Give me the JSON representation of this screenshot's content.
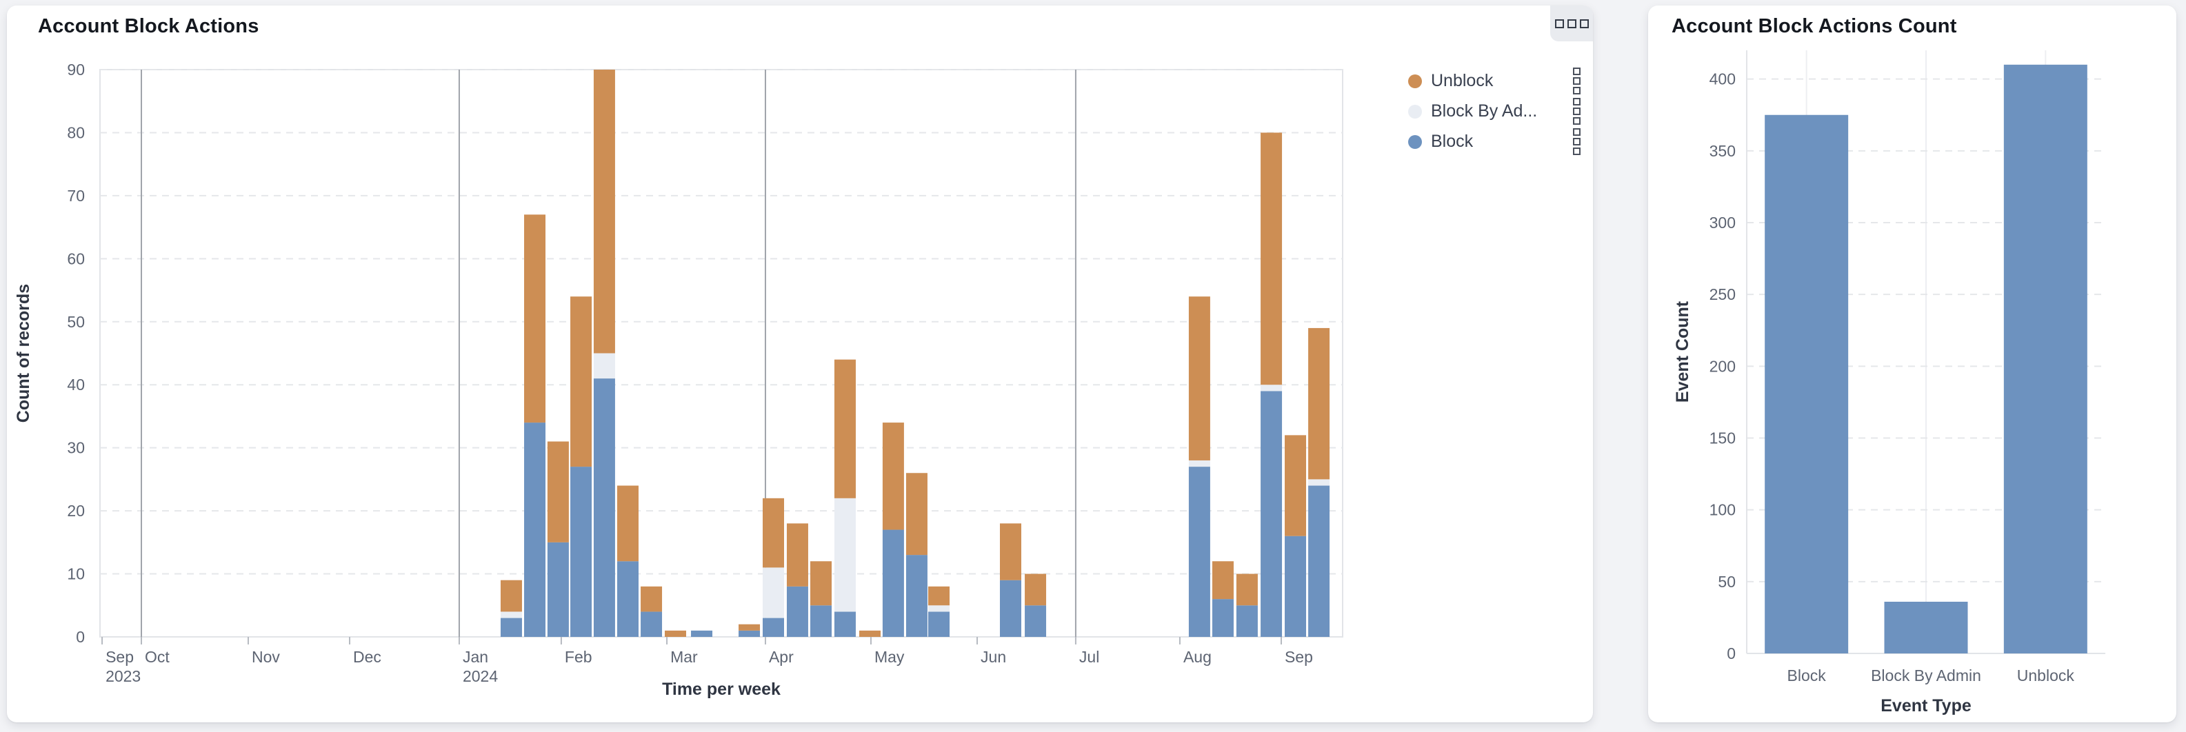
{
  "left_panel": {
    "title": "Account Block Actions",
    "menu_icon": "ellipsis-squares-icon"
  },
  "right_panel": {
    "title": "Account Block Actions Count"
  },
  "colors": {
    "block": "#6d92bf",
    "block_by_admin": "#e9edf3",
    "unblock": "#cd8e54",
    "gridline": "#e5e7ea",
    "quarter_line": "#a0a4ab",
    "plot_border": "#e2e4e8",
    "tick_text": "#5d6472",
    "axis_title_text": "#2f3542"
  },
  "chart_data": [
    {
      "type": "bar",
      "subtype": "stacked-weekly-time-series",
      "title": "Account Block Actions",
      "xlabel": "Time per week",
      "ylabel": "Count of records",
      "ylim": [
        0,
        90
      ],
      "yticks": [
        0,
        10,
        20,
        30,
        40,
        50,
        60,
        70,
        80,
        90
      ],
      "grid": "horizontal-dashed",
      "legend_position": "right",
      "legend": [
        {
          "label": "Unblock",
          "series": "unblock",
          "color": "#cd8e54"
        },
        {
          "label": "Block By Ad...",
          "series": "block_by_admin",
          "color": "#e9edf3"
        },
        {
          "label": "Block",
          "series": "block",
          "color": "#6d92bf"
        }
      ],
      "stack_order_bottom_to_top": [
        "block",
        "block_by_admin",
        "unblock"
      ],
      "x_ticks": [
        {
          "label": "Sep",
          "sublabel": "2023",
          "f": 0.0017
        },
        {
          "label": "Oct",
          "f": 0.0333
        },
        {
          "label": "Nov",
          "f": 0.1193
        },
        {
          "label": "Dec",
          "f": 0.2009
        },
        {
          "label": "Jan",
          "sublabel": "2024",
          "f": 0.2891
        },
        {
          "label": "Feb",
          "f": 0.3712
        },
        {
          "label": "Mar",
          "f": 0.4562
        },
        {
          "label": "Apr",
          "f": 0.5355
        },
        {
          "label": "May",
          "f": 0.6204
        },
        {
          "label": "Jun",
          "f": 0.7059
        },
        {
          "label": "Jul",
          "f": 0.7852
        },
        {
          "label": "Aug",
          "f": 0.869
        },
        {
          "label": "Sep",
          "f": 0.9506
        }
      ],
      "quarter_lines_f": [
        0.0333,
        0.2891,
        0.5355,
        0.7852
      ],
      "bar_width_f": 0.0172,
      "bars": [
        {
          "week_of": "2024-01-14",
          "f": 0.3224,
          "block": 3,
          "block_by_admin": 1,
          "unblock": 5
        },
        {
          "week_of": "2024-01-21",
          "f": 0.3413,
          "block": 34,
          "block_by_admin": 0,
          "unblock": 33
        },
        {
          "week_of": "2024-01-28",
          "f": 0.3601,
          "block": 15,
          "block_by_admin": 0,
          "unblock": 16
        },
        {
          "week_of": "2024-02-04",
          "f": 0.3785,
          "block": 27,
          "block_by_admin": 0,
          "unblock": 27
        },
        {
          "week_of": "2024-02-11",
          "f": 0.3973,
          "block": 41,
          "block_by_admin": 4,
          "unblock": 45
        },
        {
          "week_of": "2024-02-18",
          "f": 0.4162,
          "block": 12,
          "block_by_admin": 0,
          "unblock": 12
        },
        {
          "week_of": "2024-02-25",
          "f": 0.4351,
          "block": 4,
          "block_by_admin": 0,
          "unblock": 4
        },
        {
          "week_of": "2024-03-03",
          "f": 0.4545,
          "block": 0,
          "block_by_admin": 0,
          "unblock": 1
        },
        {
          "week_of": "2024-03-10",
          "f": 0.4756,
          "block": 1,
          "block_by_admin": 0,
          "unblock": 0
        },
        {
          "week_of": "2024-03-24",
          "f": 0.5139,
          "block": 1,
          "block_by_admin": 0,
          "unblock": 1
        },
        {
          "week_of": "2024-03-31",
          "f": 0.5333,
          "block": 3,
          "block_by_admin": 8,
          "unblock": 11
        },
        {
          "week_of": "2024-04-07",
          "f": 0.5527,
          "block": 8,
          "block_by_admin": 0,
          "unblock": 10
        },
        {
          "week_of": "2024-04-14",
          "f": 0.5716,
          "block": 5,
          "block_by_admin": 0,
          "unblock": 7
        },
        {
          "week_of": "2024-04-21",
          "f": 0.591,
          "block": 4,
          "block_by_admin": 18,
          "unblock": 22
        },
        {
          "week_of": "2024-04-28",
          "f": 0.611,
          "block": 0,
          "block_by_admin": 0,
          "unblock": 1
        },
        {
          "week_of": "2024-05-05",
          "f": 0.6298,
          "block": 17,
          "block_by_admin": 0,
          "unblock": 17
        },
        {
          "week_of": "2024-05-12",
          "f": 0.6487,
          "block": 13,
          "block_by_admin": 0,
          "unblock": 13
        },
        {
          "week_of": "2024-05-19",
          "f": 0.6665,
          "block": 4,
          "block_by_admin": 1,
          "unblock": 3
        },
        {
          "week_of": "2024-06-09",
          "f": 0.7242,
          "block": 9,
          "block_by_admin": 0,
          "unblock": 9
        },
        {
          "week_of": "2024-06-16",
          "f": 0.7442,
          "block": 5,
          "block_by_admin": 0,
          "unblock": 5
        },
        {
          "week_of": "2024-07-28",
          "f": 0.8762,
          "block": 27,
          "block_by_admin": 1,
          "unblock": 26
        },
        {
          "week_of": "2024-08-04",
          "f": 0.8951,
          "block": 6,
          "block_by_admin": 0,
          "unblock": 6
        },
        {
          "week_of": "2024-08-11",
          "f": 0.9145,
          "block": 5,
          "block_by_admin": 0,
          "unblock": 5
        },
        {
          "week_of": "2024-08-18",
          "f": 0.934,
          "block": 39,
          "block_by_admin": 1,
          "unblock": 40
        },
        {
          "week_of": "2024-08-25",
          "f": 0.9534,
          "block": 16,
          "block_by_admin": 0,
          "unblock": 16
        },
        {
          "week_of": "2024-09-01",
          "f": 0.9723,
          "block": 24,
          "block_by_admin": 1,
          "unblock": 24
        }
      ]
    },
    {
      "type": "bar",
      "title": "Account Block Actions Count",
      "xlabel": "Event Type",
      "ylabel": "Event Count",
      "ylim": [
        0,
        420
      ],
      "yticks": [
        0,
        50,
        100,
        150,
        200,
        250,
        300,
        350,
        400
      ],
      "grid": "horizontal-dashed, vertical-solid-at-categories",
      "categories": [
        "Block",
        "Block By Admin",
        "Unblock"
      ],
      "values": [
        375,
        36,
        410
      ],
      "bar_color": "#6d92bf"
    }
  ]
}
